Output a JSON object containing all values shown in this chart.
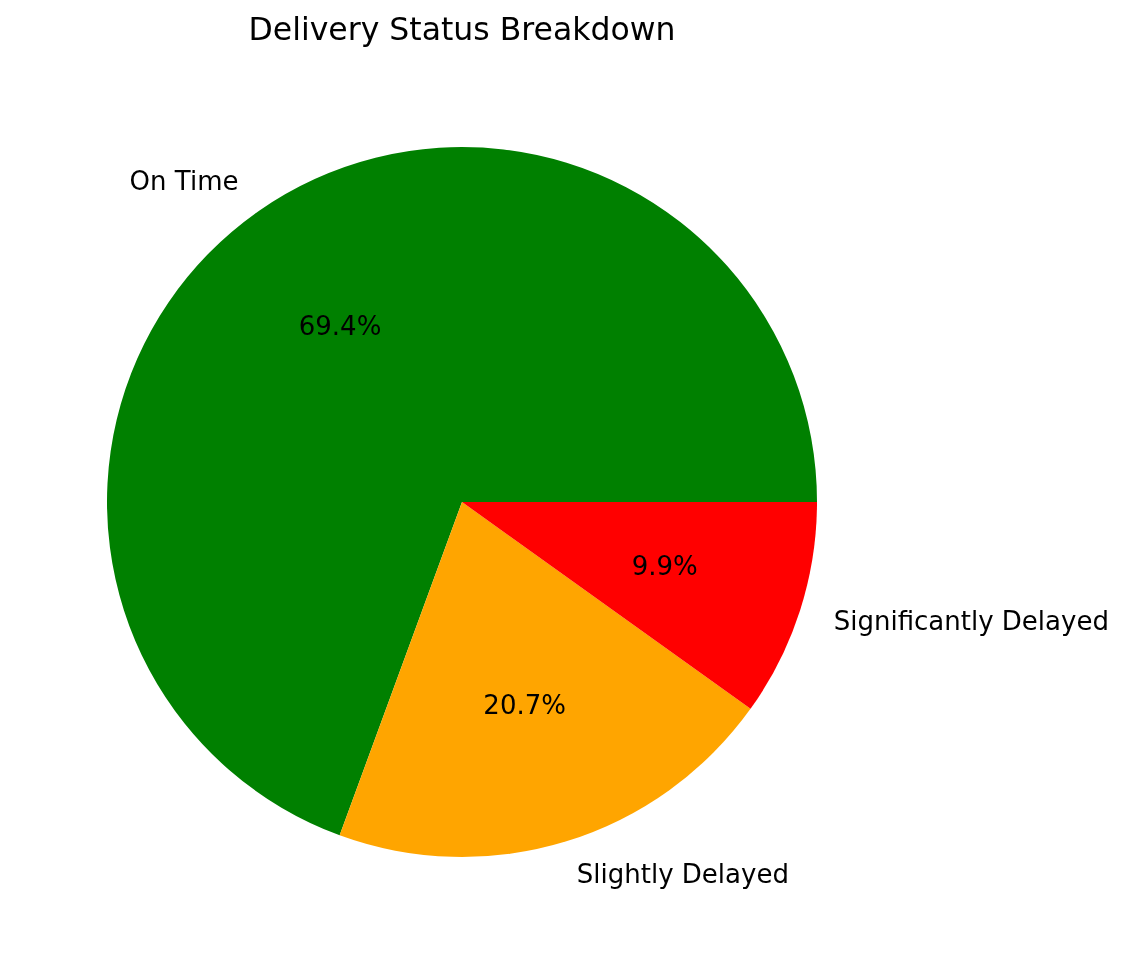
{
  "chart_data": {
    "type": "pie",
    "title": "Delivery Status Breakdown",
    "categories": [
      "On Time",
      "Slightly Delayed",
      "Significantly Delayed"
    ],
    "values": [
      69.4,
      20.7,
      9.9
    ],
    "colors": [
      "#008000",
      "#ffa500",
      "#ff0000"
    ],
    "value_labels": [
      "69.4%",
      "20.7%",
      "9.9%"
    ]
  }
}
